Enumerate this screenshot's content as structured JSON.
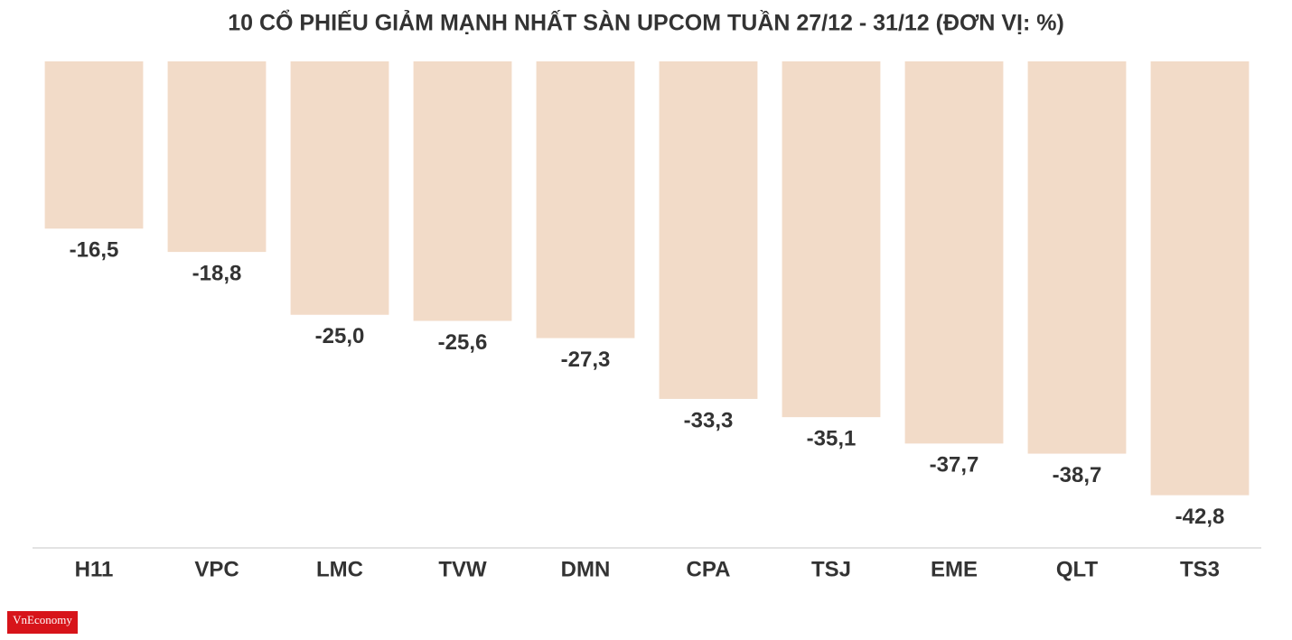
{
  "chart_data": {
    "type": "bar",
    "title": "10 CỔ PHIẾU GIẢM MẠNH NHẤT SÀN UPCOM TUẦN 27/12 - 31/12 (ĐƠN VỊ: %)",
    "categories": [
      "H11",
      "VPC",
      "LMC",
      "TVW",
      "DMN",
      "CPA",
      "TSJ",
      "EME",
      "QLT",
      "TS3"
    ],
    "values": [
      -16.5,
      -18.8,
      -25.0,
      -25.6,
      -27.3,
      -33.3,
      -35.1,
      -37.7,
      -38.7,
      -42.8
    ],
    "value_labels": [
      "-16,5",
      "-18,8",
      "-25,0",
      "-25,6",
      "-27,3",
      "-33,3",
      "-35,1",
      "-37,7",
      "-38,7",
      "-42,8"
    ],
    "color": "#f2dbc8",
    "ylim": [
      -48,
      0
    ]
  },
  "logo": "VnEconomy"
}
